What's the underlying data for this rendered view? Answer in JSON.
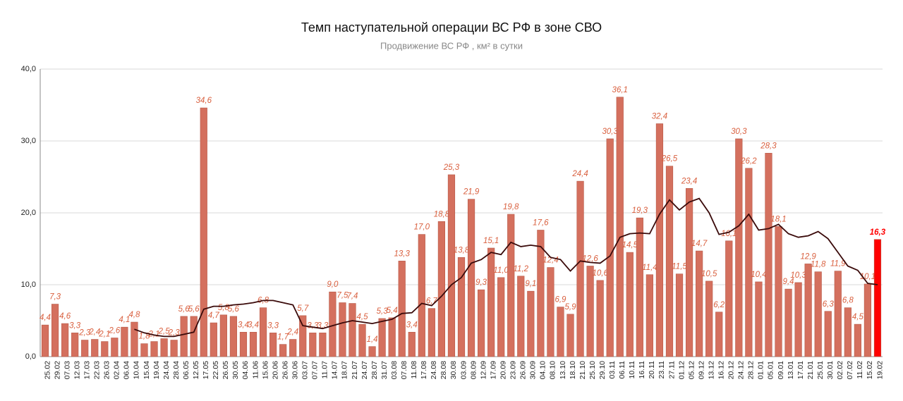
{
  "chart_data": {
    "type": "bar",
    "title": "Темп наступательной операции ВС РФ в зоне СВО",
    "subtitle": "Продвижение ВС РФ , км² в сутки",
    "categories": [
      "25.02",
      "29.02",
      "07.03",
      "12.03",
      "17.03",
      "22.03",
      "26.03",
      "02.04",
      "06.04",
      "10.04",
      "15.04",
      "19.04",
      "24.04",
      "28.04",
      "06.05",
      "12.05",
      "17.05",
      "22.05",
      "26.05",
      "30.05",
      "04.06",
      "11.06",
      "15.06",
      "20.06",
      "26.06",
      "30.06",
      "03.07",
      "07.07",
      "11.07",
      "14.07",
      "18.07",
      "21.07",
      "24.07",
      "28.07",
      "31.07",
      "03.08",
      "07.08",
      "11.08",
      "17.08",
      "24.08",
      "28.08",
      "30.08",
      "03.09",
      "08.09",
      "12.09",
      "17.09",
      "20.09",
      "23.09",
      "26.09",
      "30.09",
      "04.10",
      "08.10",
      "13.10",
      "18.10",
      "21.10",
      "25.10",
      "29.10",
      "03.11",
      "06.11",
      "10.11",
      "16.11",
      "20.11",
      "23.11",
      "27.11",
      "01.12",
      "05.12",
      "09.12",
      "13.12",
      "16.12",
      "20.12",
      "24.12",
      "28.12",
      "01.01",
      "05.01",
      "09.01",
      "13.01",
      "17.01",
      "21.01",
      "25.01",
      "30.01",
      "02.02",
      "07.02",
      "11.02",
      "15.02",
      "19.02"
    ],
    "series": [
      {
        "color": "#d4705e",
        "colors": [
          "#d4705e",
          "#d4705e",
          "#d4705e",
          "#d4705e",
          "#d4705e",
          "#d4705e",
          "#d4705e",
          "#d4705e",
          "#d4705e",
          "#d4705e",
          "#d4705e",
          "#d4705e",
          "#d4705e",
          "#d4705e",
          "#d4705e",
          "#d4705e",
          "#d4705e",
          "#d4705e",
          "#d4705e",
          "#d4705e",
          "#d4705e",
          "#d4705e",
          "#d4705e",
          "#d4705e",
          "#d4705e",
          "#d4705e",
          "#d4705e",
          "#d4705e",
          "#d4705e",
          "#d4705e",
          "#d4705e",
          "#d4705e",
          "#d4705e",
          "#d4705e",
          "#d4705e",
          "#d4705e",
          "#d4705e",
          "#d4705e",
          "#d4705e",
          "#d4705e",
          "#d4705e",
          "#d4705e",
          "#d4705e",
          "#d4705e",
          "#d4705e",
          "#d4705e",
          "#d4705e",
          "#d4705e",
          "#d4705e",
          "#d4705e",
          "#d4705e",
          "#d4705e",
          "#d4705e",
          "#d4705e",
          "#d4705e",
          "#d4705e",
          "#d4705e",
          "#d4705e",
          "#d4705e",
          "#d4705e",
          "#d4705e",
          "#d4705e",
          "#d4705e",
          "#d4705e",
          "#d4705e",
          "#d4705e",
          "#d4705e",
          "#d4705e",
          "#d4705e",
          "#d4705e",
          "#d4705e",
          "#d4705e",
          "#d4705e",
          "#d4705e",
          "#d4705e",
          "#d4705e",
          "#d4705e",
          "#d4705e",
          "#d4705e",
          "#d4705e",
          "#d4705e",
          "#d4705e",
          "#d4705e",
          "#d4705e",
          "#ff0000"
        ],
        "values": [
          4.4,
          7.3,
          4.6,
          3.3,
          2.3,
          2.4,
          2.1,
          2.6,
          4.1,
          4.8,
          1.8,
          2.1,
          2.5,
          2.3,
          5.6,
          5.6,
          34.6,
          4.7,
          5.8,
          5.6,
          3.4,
          3.4,
          6.8,
          3.3,
          1.7,
          2.4,
          5.7,
          3.3,
          3.3,
          9.0,
          7.5,
          7.4,
          4.5,
          1.4,
          5.3,
          5.4,
          13.3,
          3.4,
          17.0,
          6.7,
          18.8,
          25.3,
          13.8,
          21.9,
          9.3,
          15.1,
          11.0,
          19.8,
          11.2,
          9.1,
          17.6,
          12.4,
          6.9,
          5.9,
          24.4,
          12.6,
          10.6,
          30.3,
          36.1,
          14.5,
          19.3,
          11.4,
          32.4,
          26.5,
          11.5,
          23.4,
          14.7,
          10.5,
          6.2,
          16.1,
          30.3,
          26.2,
          10.4,
          28.3,
          18.1,
          9.4,
          10.3,
          12.9,
          11.8,
          6.3,
          11.9,
          6.8,
          4.5,
          10.1,
          16.3
        ],
        "value_labels": [
          "4,4",
          "7,3",
          "4,6",
          "3,3",
          "2,3",
          "2,4",
          "2,1",
          "2,6",
          "4,1",
          "4,8",
          "1,8",
          "2,1",
          "2,5",
          "2,3",
          "5,6",
          "5,6",
          "34,6",
          "4,7",
          "5,8",
          "5,6",
          "3,4",
          "3,4",
          "6,8",
          "3,3",
          "1,7",
          "2,4",
          "5,7",
          "3,3",
          "3,3",
          "9,0",
          "7,5",
          "7,4",
          "4,5",
          "1,4",
          "5,3",
          "5,4",
          "13,3",
          "3,4",
          "17,0",
          "6,7",
          "18,8",
          "25,3",
          "13,8",
          "21,9",
          "9,3",
          "15,1",
          "11,0",
          "19,8",
          "11,2",
          "9,1",
          "17,6",
          "12,4",
          "6,9",
          "5,9",
          "24,4",
          "12,6",
          "10,6",
          "30,3",
          "36,1",
          "14,5",
          "19,3",
          "11,4",
          "32,4",
          "26,5",
          "11,5",
          "23,4",
          "14,7",
          "10,5",
          "6,2",
          "16,1",
          "30,3",
          "26,2",
          "10,4",
          "28,3",
          "18,1",
          "9,4",
          "10,3",
          "12,9",
          "11,8",
          "6,3",
          "11,9",
          "6,8",
          "4,5",
          "10,1",
          "16,3"
        ]
      },
      {
        "type": "line",
        "color": "#3a0a0a",
        "values": [
          null,
          null,
          null,
          null,
          null,
          null,
          null,
          null,
          null,
          3.8,
          3.3,
          3.0,
          2.8,
          2.8,
          3.1,
          3.4,
          6.6,
          7.0,
          7.0,
          7.2,
          7.3,
          7.5,
          7.8,
          7.8,
          7.5,
          7.2,
          4.3,
          4.1,
          3.9,
          4.3,
          4.7,
          5.0,
          4.8,
          4.6,
          4.9,
          5.2,
          6.0,
          6.1,
          7.4,
          7.1,
          8.4,
          10.0,
          11.0,
          13.0,
          13.5,
          14.5,
          14.2,
          15.9,
          15.3,
          15.5,
          15.3,
          13.8,
          13.5,
          11.9,
          13.3,
          13.1,
          13.0,
          14.0,
          16.6,
          17.1,
          17.2,
          17.1,
          19.8,
          21.8,
          20.4,
          21.5,
          22.0,
          20.0,
          17.0,
          17.3,
          18.2,
          19.8,
          17.6,
          17.8,
          18.4,
          17.1,
          16.6,
          16.8,
          17.4,
          16.4,
          14.5,
          12.6,
          12.0,
          10.2,
          10.0
        ]
      }
    ],
    "ylim": [
      0,
      40
    ],
    "yticks": [
      {
        "value": 0,
        "label": "0,0"
      },
      {
        "value": 10,
        "label": "10,0"
      },
      {
        "value": 20,
        "label": "20,0"
      },
      {
        "value": 30,
        "label": "30,0"
      },
      {
        "value": 40,
        "label": "40,0"
      }
    ],
    "grid": true
  }
}
